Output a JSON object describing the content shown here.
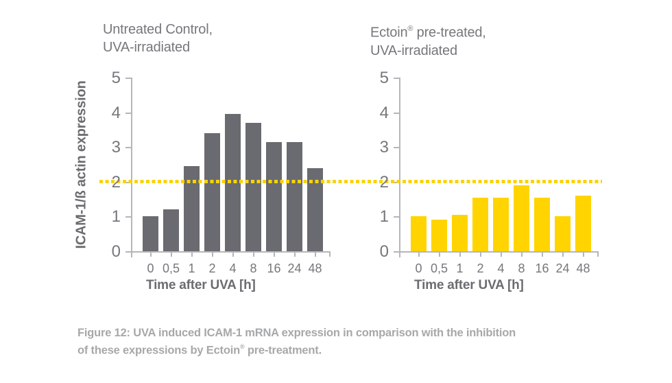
{
  "colors": {
    "background": "#ffffff",
    "gray_bar": "#6a6b70",
    "yellow_bar": "#ffd400",
    "reference_line": "#fbd303",
    "axis": "#b5b6ba",
    "tick_label": "#76777c",
    "chart_title": "#76777c",
    "axis_title": "#6b6c71",
    "caption": "#a7a8aa"
  },
  "figure": {
    "y_axis_label": "ICAM-1/ß actin expression",
    "reference_line_value": 2.05,
    "caption": {
      "line1": "Figure 12: UVA induced ICAM-1 mRNA expression in comparison with the inhibition",
      "line2_pre": "of these expressions by Ectoin",
      "sup": "®",
      "line2_post": " pre-treatment."
    }
  },
  "chart_data": [
    {
      "type": "bar",
      "title": "Untreated Control, UVA-irradiated",
      "title_line1": "Untreated Control,",
      "title_line2": "UVA-irradiated",
      "categories": [
        "0",
        "0,5",
        "1",
        "2",
        "4",
        "8",
        "16",
        "24",
        "48"
      ],
      "values": [
        1.0,
        1.2,
        2.45,
        3.4,
        3.95,
        3.7,
        3.15,
        3.15,
        2.4
      ],
      "xlabel": "Time after UVA [h]",
      "ylabel": "ICAM-1/ß actin expression",
      "ylim": [
        0,
        5
      ],
      "yticks": [
        0,
        1,
        2,
        3,
        4,
        5
      ],
      "bar_color": "#6a6b70",
      "reference_line": 2.05,
      "grid": false,
      "legend": false
    },
    {
      "type": "bar",
      "title": "Ectoin® pre-treated, UVA-irradiated",
      "title_line1_pre": "Ectoin",
      "title_sup": "®",
      "title_line1_post": " pre-treated,",
      "title_line2": "UVA-irradiated",
      "categories": [
        "0",
        "0,5",
        "1",
        "2",
        "4",
        "8",
        "16",
        "24",
        "48"
      ],
      "values": [
        1.0,
        0.9,
        1.05,
        1.55,
        1.55,
        1.9,
        1.55,
        1.0,
        1.6
      ],
      "xlabel": "Time after UVA [h]",
      "ylabel": "ICAM-1/ß actin expression",
      "ylim": [
        0,
        5
      ],
      "yticks": [
        0,
        1,
        2,
        3,
        4,
        5
      ],
      "bar_color": "#ffd400",
      "reference_line": 2.05,
      "grid": false,
      "legend": false
    }
  ]
}
